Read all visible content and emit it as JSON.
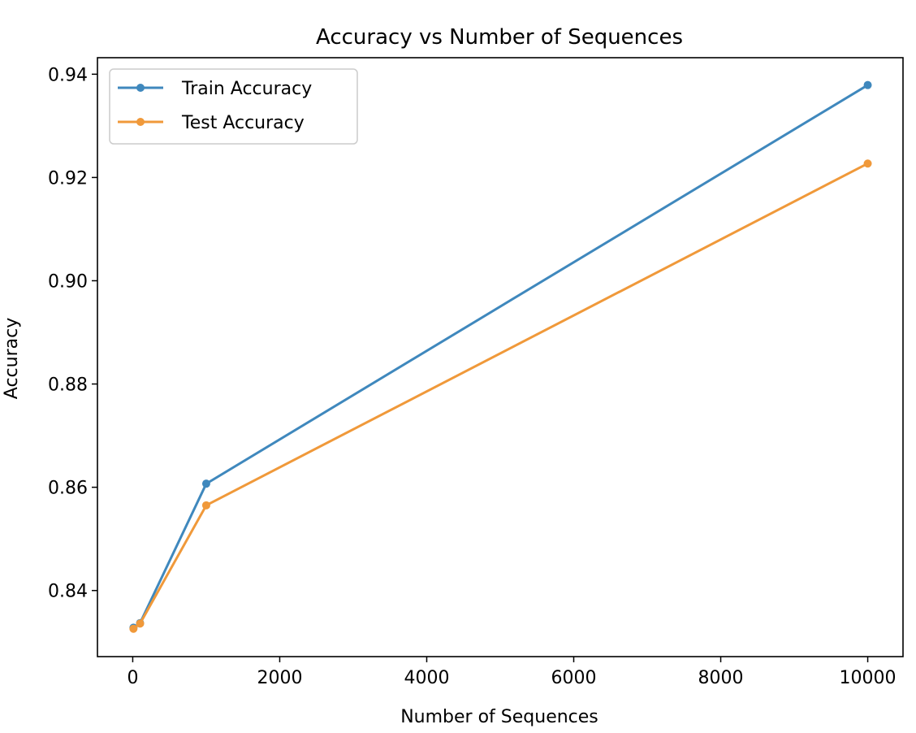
{
  "chart_data": {
    "type": "line",
    "title": "Accuracy vs Number of Sequences",
    "xlabel": "Number of Sequences",
    "ylabel": "Accuracy",
    "x": [
      10,
      100,
      1000,
      10000
    ],
    "xlim": [
      -480,
      10480
    ],
    "ylim": [
      0.8272,
      0.9432
    ],
    "x_ticks": [
      0,
      2000,
      4000,
      6000,
      8000,
      10000
    ],
    "x_tick_labels": [
      "0",
      "2000",
      "4000",
      "6000",
      "8000",
      "10000"
    ],
    "y_ticks": [
      0.84,
      0.86,
      0.88,
      0.9,
      0.92,
      0.94
    ],
    "y_tick_labels": [
      "0.84",
      "0.86",
      "0.88",
      "0.90",
      "0.92",
      "0.94"
    ],
    "grid": false,
    "legend_position": "top-left",
    "series": [
      {
        "name": "Train Accuracy",
        "color": "#3f88bd",
        "marker": "circle",
        "values": [
          0.8328,
          0.8337,
          0.8607,
          0.9379
        ]
      },
      {
        "name": "Test Accuracy",
        "color": "#f0993a",
        "marker": "circle",
        "values": [
          0.8326,
          0.8336,
          0.8565,
          0.9227
        ]
      }
    ]
  }
}
